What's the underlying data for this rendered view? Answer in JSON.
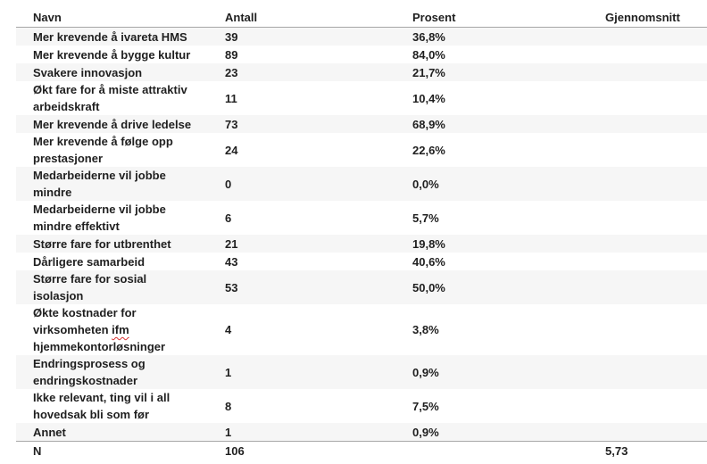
{
  "colors": {
    "stripe": "#f6f6f6",
    "border": "#a6a6a6",
    "text": "#1f1f1f",
    "spellcheck_underline": "#d93030",
    "background": "#ffffff"
  },
  "table": {
    "columns": [
      {
        "key": "name",
        "label": "Navn"
      },
      {
        "key": "antall",
        "label": "Antall"
      },
      {
        "key": "prosent",
        "label": "Prosent"
      },
      {
        "key": "gjennomsnitt",
        "label": "Gjennomsnitt"
      }
    ],
    "rows": [
      {
        "name": "Mer krevende å ivareta HMS",
        "antall": "39",
        "prosent": "36,8%",
        "gjennomsnitt": ""
      },
      {
        "name": "Mer krevende å bygge kultur",
        "antall": "89",
        "prosent": "84,0%",
        "gjennomsnitt": ""
      },
      {
        "name": "Svakere innovasjon",
        "antall": "23",
        "prosent": "21,7%",
        "gjennomsnitt": ""
      },
      {
        "name": "Økt fare for å miste attraktiv\narbeidskraft",
        "antall": "11",
        "prosent": "10,4%",
        "gjennomsnitt": ""
      },
      {
        "name": "Mer krevende å drive ledelse",
        "antall": "73",
        "prosent": "68,9%",
        "gjennomsnitt": ""
      },
      {
        "name": "Mer krevende å følge opp\nprestasjoner",
        "antall": "24",
        "prosent": "22,6%",
        "gjennomsnitt": ""
      },
      {
        "name": "Medarbeiderne vil jobbe\nmindre",
        "antall": "0",
        "prosent": "0,0%",
        "gjennomsnitt": ""
      },
      {
        "name": "Medarbeiderne vil jobbe\nmindre effektivt",
        "antall": "6",
        "prosent": "5,7%",
        "gjennomsnitt": ""
      },
      {
        "name": "Større fare for utbrenthet",
        "antall": "21",
        "prosent": "19,8%",
        "gjennomsnitt": ""
      },
      {
        "name": "Dårligere samarbeid",
        "antall": "43",
        "prosent": "40,6%",
        "gjennomsnitt": ""
      },
      {
        "name": "Større fare for sosial\nisolasjon",
        "antall": "53",
        "prosent": "50,0%",
        "gjennomsnitt": ""
      },
      {
        "name": "Økte kostnader for\nvirksomheten ifm\nhjemmekontorløsninger",
        "misspelled_word": "ifm",
        "antall": "4",
        "prosent": "3,8%",
        "gjennomsnitt": ""
      },
      {
        "name": "Endringsprosess og\nendringskostnader",
        "antall": "1",
        "prosent": "0,9%",
        "gjennomsnitt": ""
      },
      {
        "name": "Ikke relevant, ting vil i all\nhovedsak bli som før",
        "antall": "8",
        "prosent": "7,5%",
        "gjennomsnitt": ""
      },
      {
        "name": "Annet",
        "antall": "1",
        "prosent": "0,9%",
        "gjennomsnitt": ""
      }
    ],
    "footer": {
      "name": "N",
      "antall": "106",
      "prosent": "",
      "gjennomsnitt": "5,73"
    }
  }
}
